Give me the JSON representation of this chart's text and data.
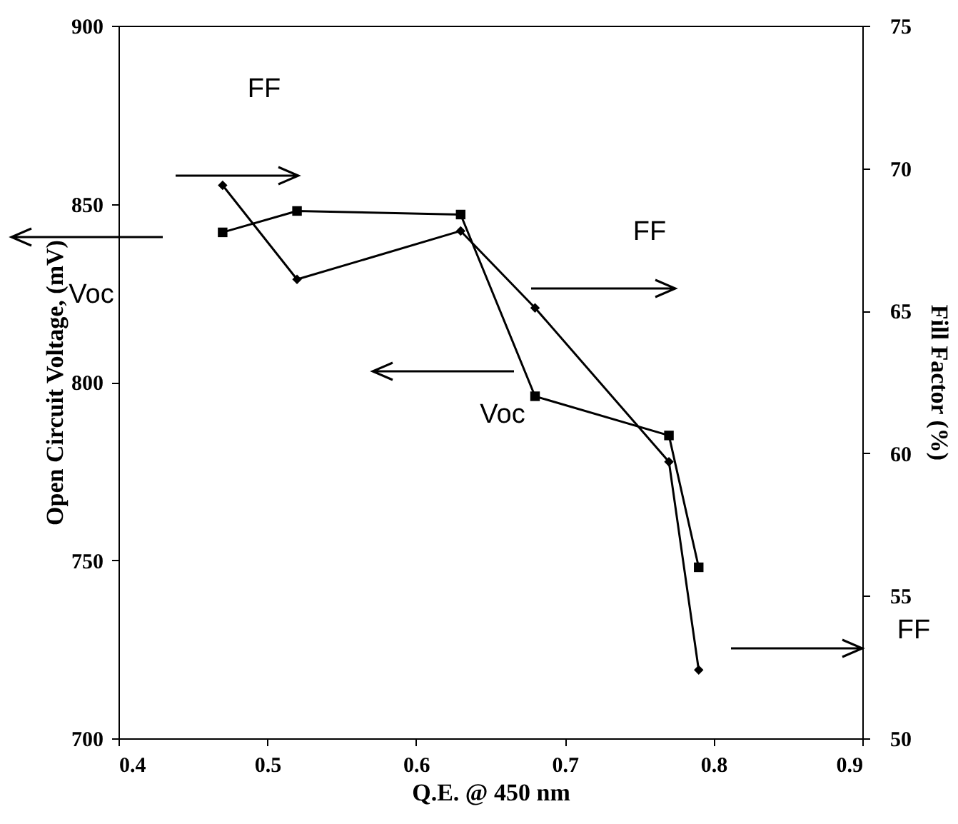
{
  "chart_data": {
    "type": "line",
    "xlabel": "Q.E. @ 450 nm",
    "ylabel": "Open Circuit Voltage, (mV)",
    "y2label": "Fill Factor (%)",
    "xlim": [
      0.4,
      0.9
    ],
    "xticks": [
      0.4,
      0.5,
      0.6,
      0.7,
      0.8,
      0.9
    ],
    "ylim": [
      700,
      900
    ],
    "yticks": [
      700,
      750,
      800,
      850,
      900
    ],
    "y2lim": [
      50,
      75
    ],
    "y2ticks": [
      50,
      55,
      60,
      65,
      70,
      75
    ],
    "grid": false,
    "annotations": [
      "FF",
      "Voc",
      "FF",
      "Voc",
      "FF"
    ],
    "series": [
      {
        "color": "#000000",
        "marker": "square",
        "x": [
          0.47,
          0.52,
          0.63,
          0.68,
          0.77,
          0.79
        ],
        "values": [
          842,
          848,
          847,
          796,
          785,
          748
        ]
      },
      {
        "color": "#000000",
        "marker": "diamond",
        "axis": "y2",
        "x": [
          0.47,
          0.52,
          0.63,
          0.68,
          0.77,
          0.79
        ],
        "values": [
          69.4,
          66.1,
          67.8,
          65.1,
          59.7,
          52.4
        ]
      }
    ]
  }
}
